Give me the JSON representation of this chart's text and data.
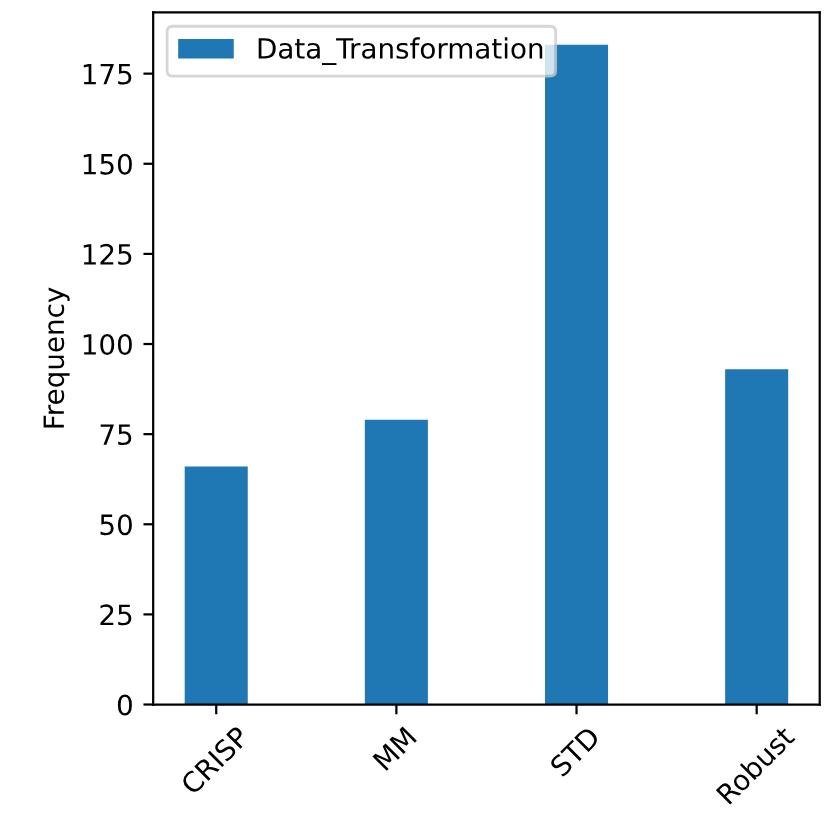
{
  "chart_data": {
    "type": "bar",
    "ylabel": "Frequency",
    "categories": [
      "CRISP",
      "MM",
      "STD",
      "Robust"
    ],
    "series": [
      {
        "name": "Data_Transformation",
        "color": "#1f77b4",
        "values": [
          66,
          79,
          183,
          93
        ]
      }
    ],
    "ylim": [
      0,
      192
    ],
    "yticks": [
      0,
      25,
      50,
      75,
      100,
      125,
      150,
      175
    ],
    "grid": false,
    "legend": "top left"
  }
}
